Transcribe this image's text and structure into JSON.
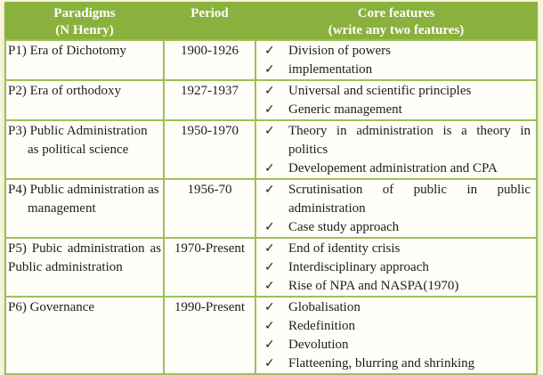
{
  "colors": {
    "header_green": "#8ab13d",
    "border_green": "#9cc058",
    "page_bg": "#f8f5dc",
    "cell_bg": "#fffef9",
    "text_color": "#1e1e1e"
  },
  "icons": {
    "check_icon": "✓"
  },
  "header": {
    "paradigms_line1": "Paradigms",
    "paradigms_line2": "(N Henry)",
    "period": "Period",
    "core_line1": "Core features",
    "core_line2": "(write any two features)"
  },
  "rows": [
    {
      "paradigm": "P1) Era of Dichotomy",
      "period": "1900-1926",
      "features": [
        "Division of powers",
        "implementation"
      ]
    },
    {
      "paradigm": "P2) Era of orthodoxy",
      "period": "1927-1937",
      "features": [
        "Universal and scientific principles",
        "Generic management"
      ]
    },
    {
      "paradigm": "P3) Public Administration as political science",
      "period": "1950-1970",
      "features": [
        "Theory in administration is a theory in politics",
        "Developement administration and CPA"
      ]
    },
    {
      "paradigm": "P4) Public administration as management",
      "period": "1956-70",
      "features": [
        "Scrutinisation of public in public administration",
        "Case study approach"
      ]
    },
    {
      "paradigm": "P5) Pubic administration as Public administration",
      "period": "1970-Present",
      "features": [
        "End of identity crisis",
        "Interdisciplinary approach",
        "Rise of NPA and NASPA(1970)"
      ]
    },
    {
      "paradigm": "P6) Governance",
      "period": "1990-Present",
      "features": [
        "Globalisation",
        "Redefinition",
        "Devolution",
        "Flatteening, blurring and shrinking"
      ]
    }
  ]
}
